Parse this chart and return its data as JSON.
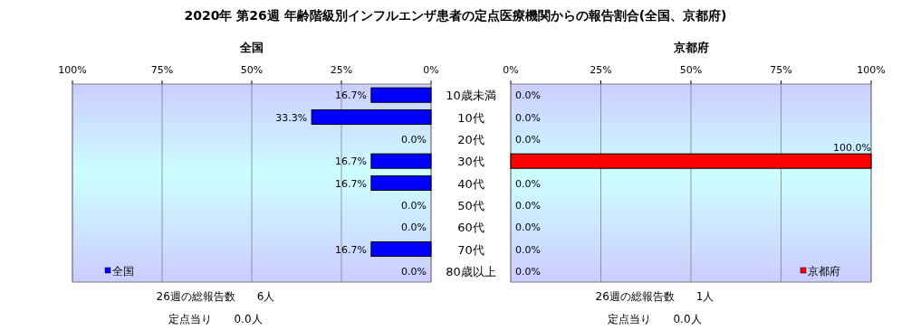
{
  "chart_data": [
    {
      "type": "other",
      "title": "2020年 第26週 年齢階級別インフルエンザ患者の定点医療機関からの報告割合(全国、京都府)"
    },
    {
      "type": "bar",
      "orientation": "horizontal",
      "title": "全国",
      "categories": [
        "10歳未満",
        "10代",
        "20代",
        "30代",
        "40代",
        "50代",
        "60代",
        "70代",
        "80歳以上"
      ],
      "series": [
        {
          "name": "全国",
          "color": "#0000ff",
          "values": [
            16.7,
            33.3,
            0,
            16.7,
            16.7,
            0,
            0,
            16.7,
            0
          ],
          "value_labels": [
            "16.7%",
            "33.3%",
            "0.0%",
            "16.7%",
            "16.7%",
            "0.0%",
            "0.0%",
            "16.7%",
            "0.0%"
          ]
        }
      ],
      "xlim": [
        100,
        0
      ],
      "xticks": [
        {
          "value": 100,
          "label": "100%"
        },
        {
          "value": 75,
          "label": "75%"
        },
        {
          "value": 50,
          "label": "50%"
        },
        {
          "value": 25,
          "label": "25%"
        },
        {
          "value": 0,
          "label": "0%"
        }
      ],
      "grid": "x",
      "legend": "bottom left",
      "annotations": [
        "26週の総報告数　　6人",
        "定点当り　　0.0人"
      ]
    },
    {
      "type": "bar",
      "orientation": "horizontal",
      "title": "京都府",
      "categories": [
        null,
        null,
        null,
        null,
        null,
        null,
        null,
        null,
        null
      ],
      "series": [
        {
          "name": "京都府",
          "color": "#ff0000",
          "values": [
            0,
            0,
            0,
            100,
            0,
            0,
            0,
            0,
            0
          ],
          "value_labels": [
            "0.0%",
            "0.0%",
            "0.0%",
            "100.0%",
            "0.0%",
            "0.0%",
            "0.0%",
            "0.0%",
            "0.0%"
          ]
        }
      ],
      "xlim": [
        0,
        100
      ],
      "xticks": [
        {
          "value": 0,
          "label": "0%"
        },
        {
          "value": 25,
          "label": "25%"
        },
        {
          "value": 50,
          "label": "50%"
        },
        {
          "value": 75,
          "label": "75%"
        },
        {
          "value": 100,
          "label": "100%"
        }
      ],
      "grid": "x",
      "legend": "bottom right",
      "tick_labels": "x",
      "annotations": [
        "26週の総報告数　　1人",
        "定点当り　　0.0人"
      ]
    }
  ]
}
